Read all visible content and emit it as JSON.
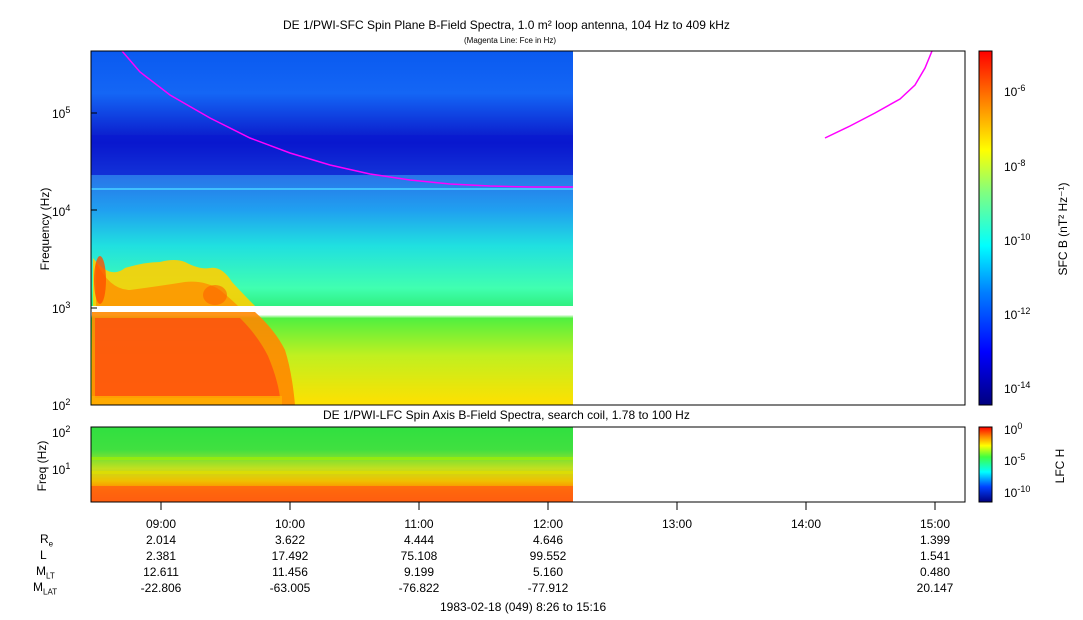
{
  "top_panel": {
    "title": "DE 1/PWI-SFC  Spin Plane B-Field Spectra, 1.0 m² loop antenna, 104 Hz to 409 kHz",
    "subtitle": "(Magenta Line: Fce in Hz)",
    "ylabel": "Frequency (Hz)",
    "yticks": [
      "10^2",
      "10^3",
      "10^4",
      "10^5"
    ],
    "colorbar_label": "SFC B (nT² Hz⁻¹)",
    "colorbar_ticks": [
      "10^-6",
      "10^-8",
      "10^-10",
      "10^-12",
      "10^-14"
    ]
  },
  "bottom_panel": {
    "title": "DE 1/PWI-LFC  Spin Axis B-Field Spectra, search coil, 1.78 to 100 Hz",
    "ylabel": "Freq (Hz)",
    "yticks": [
      "10^2",
      "10^1"
    ],
    "colorbar_label": "LFC H",
    "colorbar_ticks": [
      "10^0",
      "10^-5",
      "10^-10"
    ]
  },
  "time_ticks": [
    "09:00",
    "10:00",
    "11:00",
    "12:00",
    "13:00",
    "14:00",
    "15:00"
  ],
  "ephemeris": {
    "labels": [
      "R_e",
      "L",
      "M_LT",
      "M_LAT"
    ],
    "columns": [
      {
        "time": "09:00",
        "values": [
          "2.014",
          "2.381",
          "12.611",
          "-22.806"
        ]
      },
      {
        "time": "10:00",
        "values": [
          "3.622",
          "17.492",
          "11.456",
          "-63.005"
        ]
      },
      {
        "time": "11:00",
        "values": [
          "4.444",
          "75.108",
          "9.199",
          "-76.822"
        ]
      },
      {
        "time": "12:00",
        "values": [
          "4.646",
          "99.552",
          "5.160",
          "-77.912"
        ]
      },
      {
        "time": "15:00",
        "values": [
          "1.399",
          "1.541",
          "0.480",
          "20.147"
        ]
      }
    ]
  },
  "footer": "1983-02-18 (049) 8:26 to 15:16",
  "chart_data": [
    {
      "type": "heatmap",
      "title": "DE 1/PWI-SFC  Spin Plane B-Field Spectra, 1.0 m² loop antenna, 104 Hz to 409 kHz",
      "xlabel": "",
      "ylabel": "Frequency (Hz)",
      "x_range": [
        "08:26",
        "15:16"
      ],
      "data_end_time": "12:11",
      "ylim": [
        100,
        409000
      ],
      "yscale": "log",
      "color_scale": {
        "label": "SFC B (nT² Hz⁻¹)",
        "min": "10^-15",
        "max": "10^-5",
        "scale": "log"
      },
      "colormap": [
        "#00007f",
        "#0000ff",
        "#0080ff",
        "#00ffff",
        "#80ff80",
        "#ffff00",
        "#ff8000",
        "#ff0000"
      ],
      "fce_line": {
        "name": "Fce in Hz",
        "color": "#ff00ff",
        "segments": [
          [
            [
              "08:39",
              409000
            ],
            [
              "09:00",
              210000
            ],
            [
              "09:30",
              100000
            ],
            [
              "10:00",
              44000
            ],
            [
              "10:30",
              28000
            ],
            [
              "11:00",
              21000
            ],
            [
              "11:30",
              17500
            ],
            [
              "12:11",
              16000
            ]
          ],
          [
            [
              "14:10",
              53000
            ],
            [
              "14:30",
              80000
            ],
            [
              "14:50",
              150000
            ],
            [
              "15:00",
              409000
            ]
          ]
        ]
      }
    },
    {
      "type": "heatmap",
      "title": "DE 1/PWI-LFC  Spin Axis B-Field Spectra, search coil, 1.78 to 100 Hz",
      "ylabel": "Freq (Hz)",
      "x_range": [
        "08:26",
        "15:16"
      ],
      "data_end_time": "12:11",
      "ylim": [
        1.78,
        100
      ],
      "yscale": "log",
      "color_scale": {
        "label": "LFC H",
        "min": "10^-12",
        "max": "10^0",
        "scale": "log"
      }
    }
  ]
}
